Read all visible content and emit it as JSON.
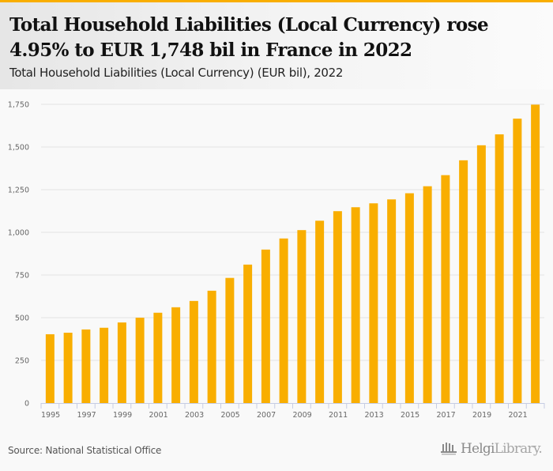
{
  "header": {
    "title": "Total Household Liabilities (Local Currency) rose 4.95% to EUR 1,748 bil in France in 2022",
    "subtitle": "Total Household Liabilities (Local Currency) (EUR bil), 2022"
  },
  "footer": {
    "source": "Source: National Statistical Office",
    "logo_bold": "Helgi",
    "logo_light": "Library."
  },
  "colors": {
    "bar": "#f9ae00",
    "accent": "#f9ae00",
    "grid": "#e3e3e3",
    "axis": "#c6cde4"
  },
  "chart_data": {
    "type": "bar",
    "title": "Total Household Liabilities (Local Currency) (EUR bil), 2022",
    "xlabel": "",
    "ylabel": "",
    "ylim": [
      0,
      1750
    ],
    "yticks": [
      0,
      250,
      500,
      750,
      1000,
      1250,
      1500,
      1750
    ],
    "ytick_labels": [
      "0",
      "250",
      "500",
      "750",
      "1,000",
      "1,250",
      "1,500",
      "1,750"
    ],
    "grid": true,
    "legend": "none",
    "categories": [
      "1995",
      "1996",
      "1997",
      "1998",
      "1999",
      "2000",
      "2001",
      "2002",
      "2003",
      "2004",
      "2005",
      "2006",
      "2007",
      "2008",
      "2009",
      "2010",
      "2011",
      "2012",
      "2013",
      "2014",
      "2015",
      "2016",
      "2017",
      "2018",
      "2019",
      "2020",
      "2021",
      "2022"
    ],
    "xtick_labels": [
      "1995",
      "",
      "1997",
      "",
      "1999",
      "",
      "2001",
      "",
      "2003",
      "",
      "2005",
      "",
      "2007",
      "",
      "2009",
      "",
      "2011",
      "",
      "2013",
      "",
      "2015",
      "",
      "2017",
      "",
      "2019",
      "",
      "2021",
      ""
    ],
    "series": [
      {
        "name": "Total Household Liabilities (Local Currency)",
        "values": [
          403,
          412,
          431,
          441,
          472,
          500,
          529,
          561,
          598,
          658,
          733,
          811,
          899,
          964,
          1013,
          1068,
          1124,
          1147,
          1170,
          1193,
          1229,
          1270,
          1335,
          1422,
          1510,
          1574,
          1666,
          1748
        ]
      }
    ]
  }
}
